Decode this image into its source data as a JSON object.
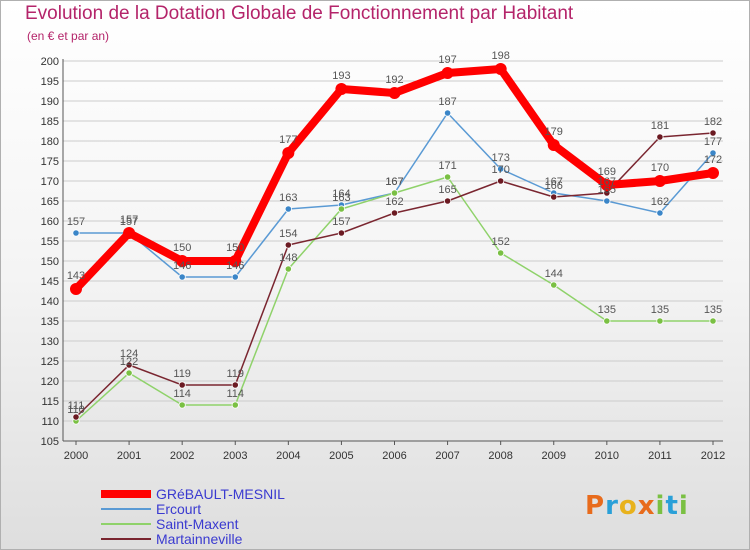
{
  "title": "Evolution de la Dotation Globale de Fonctionnement par Habitant",
  "subtitle": "(en € et par an)",
  "logo": {
    "p": "P",
    "r": "r",
    "o": "o",
    "x": "x",
    "i": "i",
    "t": "t",
    "i2": "i"
  },
  "colors": {
    "title": "#b4246a",
    "legend_text": "#3a3ad0",
    "grid": "#cccccc",
    "axis": "#555555"
  },
  "chart_data": {
    "type": "line",
    "title": "Evolution de la Dotation Globale de Fonctionnement par Habitant",
    "subtitle": "(en € et par an)",
    "xlabel": "",
    "ylabel": "",
    "ylim": [
      105,
      200
    ],
    "ytick_step": 5,
    "grid": true,
    "legend_position": "bottom-left",
    "categories": [
      "2000",
      "2001",
      "2002",
      "2003",
      "2004",
      "2005",
      "2006",
      "2007",
      "2008",
      "2009",
      "2010",
      "2011",
      "2012"
    ],
    "y_ticks": [
      "105",
      "110",
      "115",
      "120",
      "125",
      "130",
      "135",
      "140",
      "145",
      "150",
      "155",
      "160",
      "165",
      "170",
      "175",
      "180",
      "185",
      "190",
      "195",
      "200"
    ],
    "series": [
      {
        "name": "GRéBAULT-MESNIL",
        "color": "#ff0000",
        "marker_color": "#ff0000",
        "emphasis": true,
        "values": [
          143,
          157,
          150,
          150,
          177,
          193,
          192,
          197,
          198,
          179,
          169,
          170,
          172
        ],
        "labels": [
          "143",
          "157",
          "150",
          "150",
          "177",
          "193",
          "192",
          "197",
          "198",
          "179",
          "169",
          "170",
          "172"
        ]
      },
      {
        "name": "Ercourt",
        "color": "#5a9ad4",
        "marker_color": "#3b86c8",
        "emphasis": false,
        "values": [
          157,
          157,
          146,
          146,
          163,
          164,
          167,
          187,
          173,
          167,
          165,
          162,
          177
        ],
        "labels": [
          "157",
          "157",
          "146",
          "146",
          "163",
          "164",
          "167",
          "187",
          "173",
          "167",
          "165",
          "162",
          "177"
        ]
      },
      {
        "name": "Saint-Maxent",
        "color": "#8fd26a",
        "marker_color": "#7ac043",
        "emphasis": false,
        "values": [
          110,
          122,
          114,
          114,
          148,
          163,
          167,
          171,
          152,
          144,
          135,
          135,
          135
        ],
        "labels": [
          "110",
          "122",
          "114",
          "114",
          "148",
          "163",
          "167",
          "171",
          "152",
          "144",
          "135",
          "135",
          "135"
        ]
      },
      {
        "name": "Martainneville",
        "color": "#7a2630",
        "marker_color": "#6b1a22",
        "emphasis": false,
        "values": [
          111,
          124,
          119,
          119,
          154,
          157,
          162,
          165,
          170,
          166,
          167,
          181,
          182
        ],
        "labels": [
          "111",
          "124",
          "119",
          "119",
          "154",
          "157",
          "162",
          "165",
          "170",
          "166",
          "167",
          "181",
          "182"
        ]
      }
    ]
  }
}
